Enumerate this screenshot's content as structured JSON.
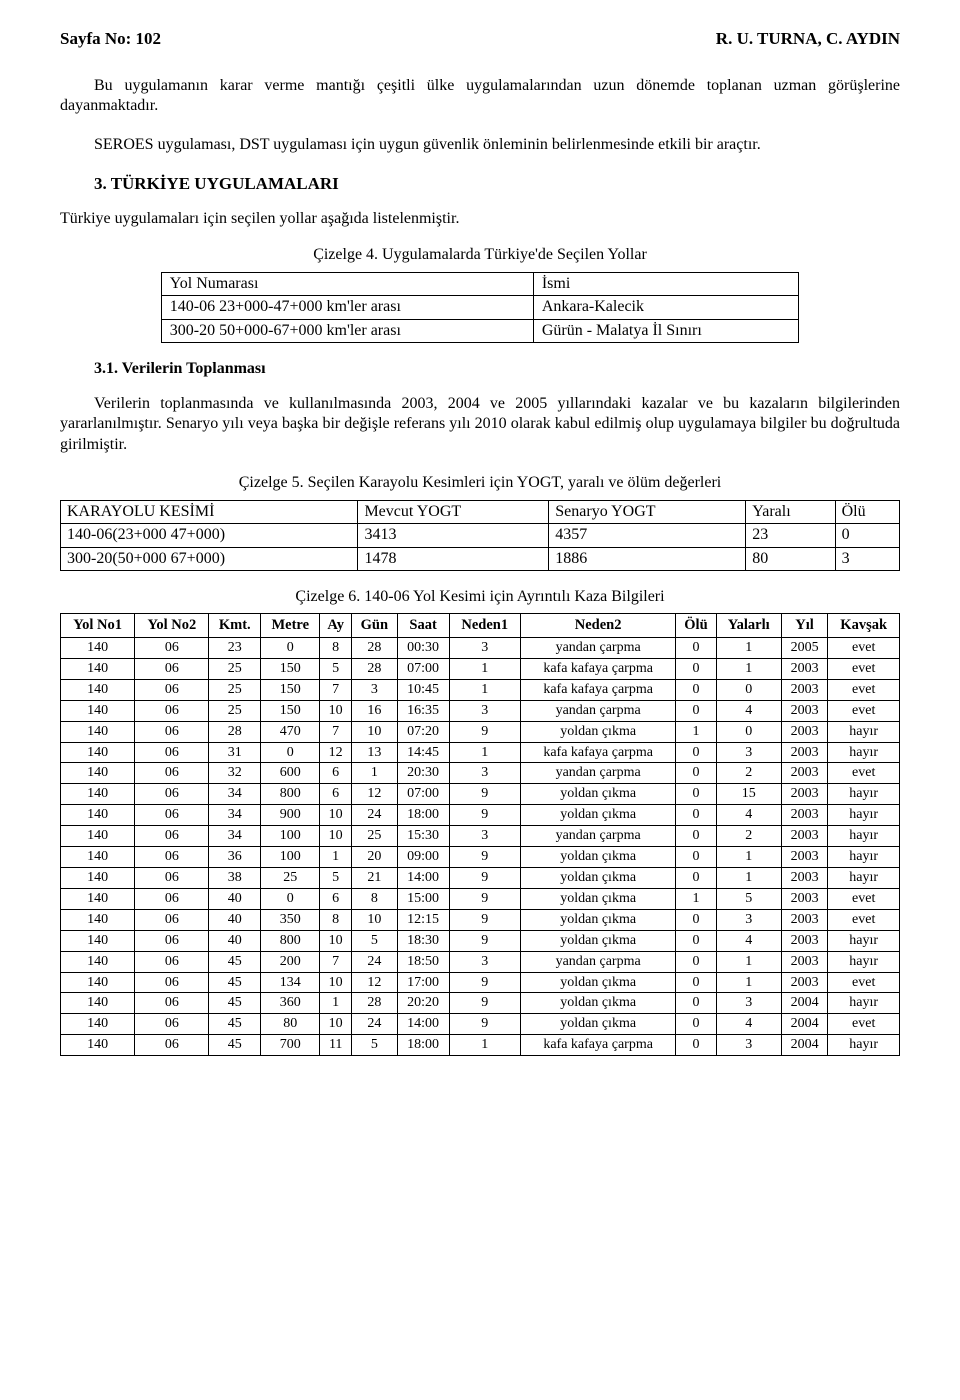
{
  "header": {
    "page_label": "Sayfa No: 102",
    "authors": "R. U. TURNA, C. AYDIN"
  },
  "paragraphs": {
    "p1": "Bu uygulamanın karar verme mantığı çeşitli ülke uygulamalarından uzun dönemde toplanan uzman görüşlerine dayanmaktadır.",
    "p2": "SEROES uygulaması, DST uygulaması için uygun güvenlik önleminin belirlenmesinde etkili bir araçtır.",
    "section3_title": "3. TÜRKİYE UYGULAMALARI",
    "p3": "Türkiye uygulamaları için seçilen yollar aşağıda listelenmiştir.",
    "sub31_title": "3.1. Verilerin Toplanması",
    "p4a": "Verilerin toplanmasında ve kullanılmasında 2003, 2004 ve 2005 yıllarındaki kazalar ve bu kazaların bilgilerinden yararlanılmıştır. Senaryo yılı veya başka bir değişle referans yılı 2010 olarak kabul edilmiş olup uygulamaya bilgiler bu doğrultuda girilmiştir."
  },
  "table4": {
    "caption": "Çizelge 4. Uygulamalarda Türkiye'de Seçilen Yollar",
    "headers": [
      "Yol Numarası",
      "İsmi"
    ],
    "rows": [
      [
        "140-06 23+000-47+000 km'ler arası",
        "Ankara-Kalecik"
      ],
      [
        "300-20 50+000-67+000 km'ler arası",
        "Gürün - Malatya İl Sınırı"
      ]
    ]
  },
  "table5": {
    "caption": "Çizelge 5. Seçilen Karayolu Kesimleri için YOGT, yaralı ve ölüm değerleri",
    "headers": [
      "KARAYOLU KESİMİ",
      "Mevcut YOGT",
      "Senaryo YOGT",
      "Yaralı",
      "Ölü"
    ],
    "rows": [
      [
        "140-06(23+000 47+000)",
        "3413",
        "4357",
        "23",
        "0"
      ],
      [
        "300-20(50+000 67+000)",
        "1478",
        "1886",
        "80",
        "3"
      ]
    ]
  },
  "table6": {
    "caption": "Çizelge 6. 140-06 Yol Kesimi için Ayrıntılı Kaza Bilgileri",
    "headers": [
      "Yol No1",
      "Yol No2",
      "Kmt.",
      "Metre",
      "Ay",
      "Gün",
      "Saat",
      "Neden1",
      "Neden2",
      "Ölü",
      "Yalarlı",
      "Yıl",
      "Kavşak"
    ],
    "rows": [
      [
        "140",
        "06",
        "23",
        "0",
        "8",
        "28",
        "00:30",
        "3",
        "yandan çarpma",
        "0",
        "1",
        "2005",
        "evet"
      ],
      [
        "140",
        "06",
        "25",
        "150",
        "5",
        "28",
        "07:00",
        "1",
        "kafa kafaya çarpma",
        "0",
        "1",
        "2003",
        "evet"
      ],
      [
        "140",
        "06",
        "25",
        "150",
        "7",
        "3",
        "10:45",
        "1",
        "kafa kafaya çarpma",
        "0",
        "0",
        "2003",
        "evet"
      ],
      [
        "140",
        "06",
        "25",
        "150",
        "10",
        "16",
        "16:35",
        "3",
        "yandan çarpma",
        "0",
        "4",
        "2003",
        "evet"
      ],
      [
        "140",
        "06",
        "28",
        "470",
        "7",
        "10",
        "07:20",
        "9",
        "yoldan çıkma",
        "1",
        "0",
        "2003",
        "hayır"
      ],
      [
        "140",
        "06",
        "31",
        "0",
        "12",
        "13",
        "14:45",
        "1",
        "kafa kafaya çarpma",
        "0",
        "3",
        "2003",
        "hayır"
      ],
      [
        "140",
        "06",
        "32",
        "600",
        "6",
        "1",
        "20:30",
        "3",
        "yandan çarpma",
        "0",
        "2",
        "2003",
        "evet"
      ],
      [
        "140",
        "06",
        "34",
        "800",
        "6",
        "12",
        "07:00",
        "9",
        "yoldan çıkma",
        "0",
        "15",
        "2003",
        "hayır"
      ],
      [
        "140",
        "06",
        "34",
        "900",
        "10",
        "24",
        "18:00",
        "9",
        "yoldan çıkma",
        "0",
        "4",
        "2003",
        "hayır"
      ],
      [
        "140",
        "06",
        "34",
        "100",
        "10",
        "25",
        "15:30",
        "3",
        "yandan çarpma",
        "0",
        "2",
        "2003",
        "hayır"
      ],
      [
        "140",
        "06",
        "36",
        "100",
        "1",
        "20",
        "09:00",
        "9",
        "yoldan çıkma",
        "0",
        "1",
        "2003",
        "hayır"
      ],
      [
        "140",
        "06",
        "38",
        "25",
        "5",
        "21",
        "14:00",
        "9",
        "yoldan çıkma",
        "0",
        "1",
        "2003",
        "hayır"
      ],
      [
        "140",
        "06",
        "40",
        "0",
        "6",
        "8",
        "15:00",
        "9",
        "yoldan çıkma",
        "1",
        "5",
        "2003",
        "evet"
      ],
      [
        "140",
        "06",
        "40",
        "350",
        "8",
        "10",
        "12:15",
        "9",
        "yoldan çıkma",
        "0",
        "3",
        "2003",
        "evet"
      ],
      [
        "140",
        "06",
        "40",
        "800",
        "10",
        "5",
        "18:30",
        "9",
        "yoldan çıkma",
        "0",
        "4",
        "2003",
        "hayır"
      ],
      [
        "140",
        "06",
        "45",
        "200",
        "7",
        "24",
        "18:50",
        "3",
        "yandan çarpma",
        "0",
        "1",
        "2003",
        "hayır"
      ],
      [
        "140",
        "06",
        "45",
        "134",
        "10",
        "12",
        "17:00",
        "9",
        "yoldan çıkma",
        "0",
        "1",
        "2003",
        "evet"
      ],
      [
        "140",
        "06",
        "45",
        "360",
        "1",
        "28",
        "20:20",
        "9",
        "yoldan çıkma",
        "0",
        "3",
        "2004",
        "hayır"
      ],
      [
        "140",
        "06",
        "45",
        "80",
        "10",
        "24",
        "14:00",
        "9",
        "yoldan çıkma",
        "0",
        "4",
        "2004",
        "evet"
      ],
      [
        "140",
        "06",
        "45",
        "700",
        "11",
        "5",
        "18:00",
        "1",
        "kafa kafaya çarpma",
        "0",
        "3",
        "2004",
        "hayır"
      ]
    ]
  }
}
